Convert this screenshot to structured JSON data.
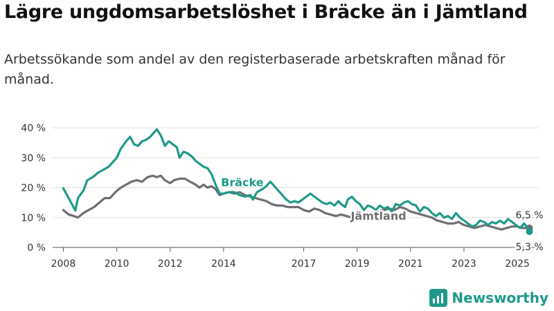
{
  "header": {
    "title": "Lägre ungdomsarbetslöshet i Bräcke än i Jämtland",
    "subtitle": "Arbetssökande som andel av den registerbaserade arbetskraften månad för månad."
  },
  "brand": {
    "name": "Newsworthy",
    "icon": "newsworthy-logo-icon",
    "color": "#1f9a8a"
  },
  "chart_data": {
    "type": "line",
    "ylim": [
      0,
      40
    ],
    "xlim": [
      2007.6,
      2025.8
    ],
    "y_ticks": [
      {
        "value": 0,
        "label": "0 %"
      },
      {
        "value": 10,
        "label": "10 %"
      },
      {
        "value": 20,
        "label": "20 %"
      },
      {
        "value": 30,
        "label": "30 %"
      },
      {
        "value": 40,
        "label": "40 %"
      }
    ],
    "x_ticks": [
      {
        "value": 2008,
        "label": "2008"
      },
      {
        "value": 2010,
        "label": "2010"
      },
      {
        "value": 2012,
        "label": "2012"
      },
      {
        "value": 2014,
        "label": "2014"
      },
      {
        "value": 2017,
        "label": "2017"
      },
      {
        "value": 2019,
        "label": "2019"
      },
      {
        "value": 2021,
        "label": "2021"
      },
      {
        "value": 2023,
        "label": "2023"
      },
      {
        "value": 2025,
        "label": "2025"
      }
    ],
    "grid": true,
    "series": [
      {
        "name": "Bräcke",
        "color": "#1f9a8a",
        "end_label": "5,3 %",
        "label_at": [
          2014.7,
          20.5
        ],
        "points": [
          [
            2008.0,
            19.8
          ],
          [
            2008.2,
            16.5
          ],
          [
            2008.35,
            14.0
          ],
          [
            2008.45,
            12.3
          ],
          [
            2008.55,
            16.5
          ],
          [
            2008.75,
            19.0
          ],
          [
            2008.9,
            22.5
          ],
          [
            2009.1,
            23.5
          ],
          [
            2009.3,
            25.0
          ],
          [
            2009.5,
            26.0
          ],
          [
            2009.7,
            27.0
          ],
          [
            2009.85,
            28.5
          ],
          [
            2010.0,
            30.0
          ],
          [
            2010.15,
            33.0
          ],
          [
            2010.35,
            35.5
          ],
          [
            2010.5,
            37.0
          ],
          [
            2010.65,
            34.5
          ],
          [
            2010.8,
            34.0
          ],
          [
            2010.95,
            35.5
          ],
          [
            2011.1,
            36.0
          ],
          [
            2011.25,
            37.0
          ],
          [
            2011.4,
            38.5
          ],
          [
            2011.5,
            39.5
          ],
          [
            2011.65,
            37.5
          ],
          [
            2011.8,
            34.0
          ],
          [
            2011.95,
            35.5
          ],
          [
            2012.1,
            34.5
          ],
          [
            2012.25,
            33.5
          ],
          [
            2012.35,
            30.0
          ],
          [
            2012.5,
            32.0
          ],
          [
            2012.65,
            31.5
          ],
          [
            2012.8,
            30.5
          ],
          [
            2012.95,
            29.0
          ],
          [
            2013.1,
            28.0
          ],
          [
            2013.25,
            27.0
          ],
          [
            2013.4,
            26.5
          ],
          [
            2013.55,
            24.5
          ],
          [
            2013.7,
            21.0
          ],
          [
            2013.85,
            18.0
          ],
          [
            2014.0,
            18.0
          ],
          [
            2014.2,
            18.5
          ],
          [
            2014.4,
            18.5
          ],
          [
            2014.6,
            17.5
          ],
          [
            2014.8,
            17.0
          ],
          [
            2015.0,
            17.5
          ],
          [
            2015.1,
            16.0
          ],
          [
            2015.25,
            18.5
          ],
          [
            2015.45,
            19.5
          ],
          [
            2015.6,
            20.5
          ],
          [
            2015.75,
            22.0
          ],
          [
            2015.9,
            20.5
          ],
          [
            2016.05,
            19.0
          ],
          [
            2016.2,
            17.5
          ],
          [
            2016.35,
            16.0
          ],
          [
            2016.5,
            15.0
          ],
          [
            2016.65,
            15.5
          ],
          [
            2016.8,
            15.0
          ],
          [
            2016.95,
            16.0
          ],
          [
            2017.1,
            17.0
          ],
          [
            2017.25,
            18.0
          ],
          [
            2017.4,
            17.0
          ],
          [
            2017.55,
            16.0
          ],
          [
            2017.7,
            15.0
          ],
          [
            2017.85,
            14.5
          ],
          [
            2018.0,
            15.0
          ],
          [
            2018.15,
            14.0
          ],
          [
            2018.3,
            15.5
          ],
          [
            2018.4,
            14.5
          ],
          [
            2018.55,
            13.5
          ],
          [
            2018.65,
            16.0
          ],
          [
            2018.8,
            17.0
          ],
          [
            2018.95,
            15.5
          ],
          [
            2019.1,
            14.5
          ],
          [
            2019.25,
            12.5
          ],
          [
            2019.4,
            14.0
          ],
          [
            2019.55,
            13.5
          ],
          [
            2019.7,
            12.5
          ],
          [
            2019.85,
            14.0
          ],
          [
            2020.0,
            13.0
          ],
          [
            2020.15,
            13.5
          ],
          [
            2020.3,
            12.0
          ],
          [
            2020.45,
            14.5
          ],
          [
            2020.6,
            14.0
          ],
          [
            2020.75,
            15.0
          ],
          [
            2020.9,
            15.5
          ],
          [
            2021.05,
            14.5
          ],
          [
            2021.2,
            14.0
          ],
          [
            2021.35,
            12.0
          ],
          [
            2021.5,
            13.5
          ],
          [
            2021.65,
            13.0
          ],
          [
            2021.8,
            11.5
          ],
          [
            2021.95,
            10.5
          ],
          [
            2022.1,
            11.5
          ],
          [
            2022.25,
            10.0
          ],
          [
            2022.4,
            10.5
          ],
          [
            2022.55,
            9.5
          ],
          [
            2022.7,
            11.5
          ],
          [
            2022.85,
            10.0
          ],
          [
            2023.0,
            9.0
          ],
          [
            2023.15,
            8.0
          ],
          [
            2023.3,
            7.0
          ],
          [
            2023.45,
            7.5
          ],
          [
            2023.6,
            9.0
          ],
          [
            2023.75,
            8.5
          ],
          [
            2023.9,
            7.5
          ],
          [
            2024.05,
            8.5
          ],
          [
            2024.2,
            8.0
          ],
          [
            2024.35,
            9.0
          ],
          [
            2024.5,
            8.0
          ],
          [
            2024.65,
            9.5
          ],
          [
            2024.8,
            8.5
          ],
          [
            2024.95,
            7.5
          ],
          [
            2025.1,
            6.5
          ],
          [
            2025.25,
            8.0
          ],
          [
            2025.35,
            7.0
          ],
          [
            2025.45,
            5.3
          ]
        ]
      },
      {
        "name": "Jämtland",
        "color": "#716d73",
        "end_label": "6,5 %",
        "label_at": [
          2019.8,
          9.3
        ],
        "points": [
          [
            2008.0,
            12.5
          ],
          [
            2008.2,
            11.0
          ],
          [
            2008.4,
            10.5
          ],
          [
            2008.55,
            10.0
          ],
          [
            2008.75,
            11.5
          ],
          [
            2008.95,
            12.5
          ],
          [
            2009.15,
            13.5
          ],
          [
            2009.35,
            15.0
          ],
          [
            2009.55,
            16.5
          ],
          [
            2009.75,
            16.5
          ],
          [
            2009.95,
            18.5
          ],
          [
            2010.15,
            20.0
          ],
          [
            2010.35,
            21.0
          ],
          [
            2010.55,
            22.0
          ],
          [
            2010.75,
            22.5
          ],
          [
            2010.95,
            22.0
          ],
          [
            2011.15,
            23.5
          ],
          [
            2011.35,
            24.0
          ],
          [
            2011.5,
            23.5
          ],
          [
            2011.65,
            24.0
          ],
          [
            2011.8,
            22.5
          ],
          [
            2012.0,
            21.5
          ],
          [
            2012.15,
            22.5
          ],
          [
            2012.35,
            23.0
          ],
          [
            2012.55,
            23.0
          ],
          [
            2012.75,
            22.0
          ],
          [
            2012.95,
            21.0
          ],
          [
            2013.1,
            20.0
          ],
          [
            2013.25,
            21.0
          ],
          [
            2013.4,
            20.0
          ],
          [
            2013.55,
            20.5
          ],
          [
            2013.7,
            19.5
          ],
          [
            2013.85,
            17.5
          ],
          [
            2014.0,
            18.0
          ],
          [
            2014.2,
            18.5
          ],
          [
            2014.4,
            18.0
          ],
          [
            2014.6,
            18.5
          ],
          [
            2014.8,
            17.5
          ],
          [
            2015.0,
            17.0
          ],
          [
            2015.2,
            16.5
          ],
          [
            2015.4,
            16.0
          ],
          [
            2015.6,
            15.5
          ],
          [
            2015.8,
            14.5
          ],
          [
            2016.0,
            14.0
          ],
          [
            2016.2,
            14.0
          ],
          [
            2016.4,
            13.5
          ],
          [
            2016.6,
            13.5
          ],
          [
            2016.8,
            13.5
          ],
          [
            2017.0,
            12.5
          ],
          [
            2017.2,
            12.0
          ],
          [
            2017.4,
            13.0
          ],
          [
            2017.6,
            12.5
          ],
          [
            2017.8,
            11.5
          ],
          [
            2018.0,
            11.0
          ],
          [
            2018.2,
            10.5
          ],
          [
            2018.4,
            11.0
          ],
          [
            2018.6,
            10.5
          ],
          [
            2018.8,
            10.0
          ],
          [
            2019.0,
            10.0
          ],
          [
            2019.2,
            10.5
          ],
          [
            2019.4,
            11.0
          ],
          [
            2019.6,
            11.5
          ],
          [
            2019.8,
            12.0
          ],
          [
            2020.0,
            12.5
          ],
          [
            2020.2,
            13.0
          ],
          [
            2020.4,
            12.5
          ],
          [
            2020.6,
            13.5
          ],
          [
            2020.8,
            13.0
          ],
          [
            2021.0,
            12.0
          ],
          [
            2021.2,
            11.5
          ],
          [
            2021.4,
            11.0
          ],
          [
            2021.6,
            10.5
          ],
          [
            2021.8,
            10.0
          ],
          [
            2022.0,
            9.0
          ],
          [
            2022.2,
            8.5
          ],
          [
            2022.4,
            8.0
          ],
          [
            2022.6,
            8.0
          ],
          [
            2022.8,
            8.5
          ],
          [
            2023.0,
            7.5
          ],
          [
            2023.2,
            7.0
          ],
          [
            2023.4,
            6.5
          ],
          [
            2023.6,
            7.0
          ],
          [
            2023.8,
            7.5
          ],
          [
            2024.0,
            7.0
          ],
          [
            2024.2,
            6.5
          ],
          [
            2024.4,
            6.0
          ],
          [
            2024.6,
            6.5
          ],
          [
            2024.8,
            7.0
          ],
          [
            2025.0,
            7.0
          ],
          [
            2025.2,
            6.5
          ],
          [
            2025.45,
            6.5
          ]
        ]
      }
    ]
  }
}
